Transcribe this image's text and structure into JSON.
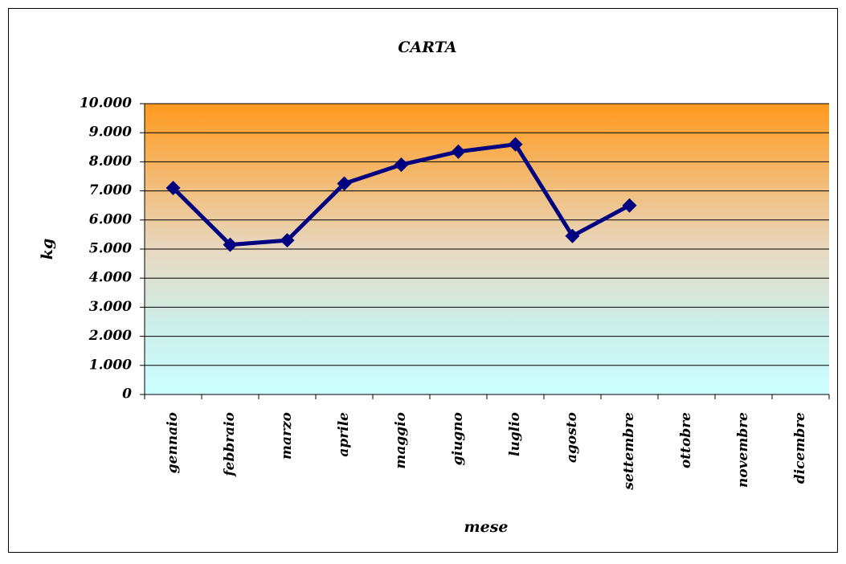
{
  "chart_data": {
    "type": "line",
    "title": "CARTA",
    "x_label": "mese",
    "y_label": "kg",
    "categories": [
      "gennaio",
      "febbraio",
      "marzo",
      "aprile",
      "maggio",
      "giugno",
      "luglio",
      "agosto",
      "settembre",
      "ottobre",
      "novembre",
      "dicembre"
    ],
    "series": [
      {
        "name": "CARTA",
        "color": "#000080",
        "values": [
          7100,
          5150,
          5300,
          7250,
          7900,
          8350,
          8600,
          5450,
          6500,
          null,
          null,
          null
        ]
      }
    ],
    "ylim": [
      0,
      10000
    ],
    "yticks": [
      0,
      {
        "value": 1000,
        "label": "1.000"
      },
      {
        "value": 2000,
        "label": "2.000"
      },
      {
        "value": 3000,
        "label": "3.000"
      },
      {
        "value": 4000,
        "label": "4.000"
      },
      {
        "value": 5000,
        "label": "5.000"
      },
      {
        "value": 6000,
        "label": "6.000"
      },
      {
        "value": 7000,
        "label": "7.000"
      },
      {
        "value": 8000,
        "label": "8.000"
      },
      {
        "value": 9000,
        "label": "9.000"
      },
      {
        "value": 10000,
        "label": "10.000"
      }
    ],
    "grid": true
  }
}
